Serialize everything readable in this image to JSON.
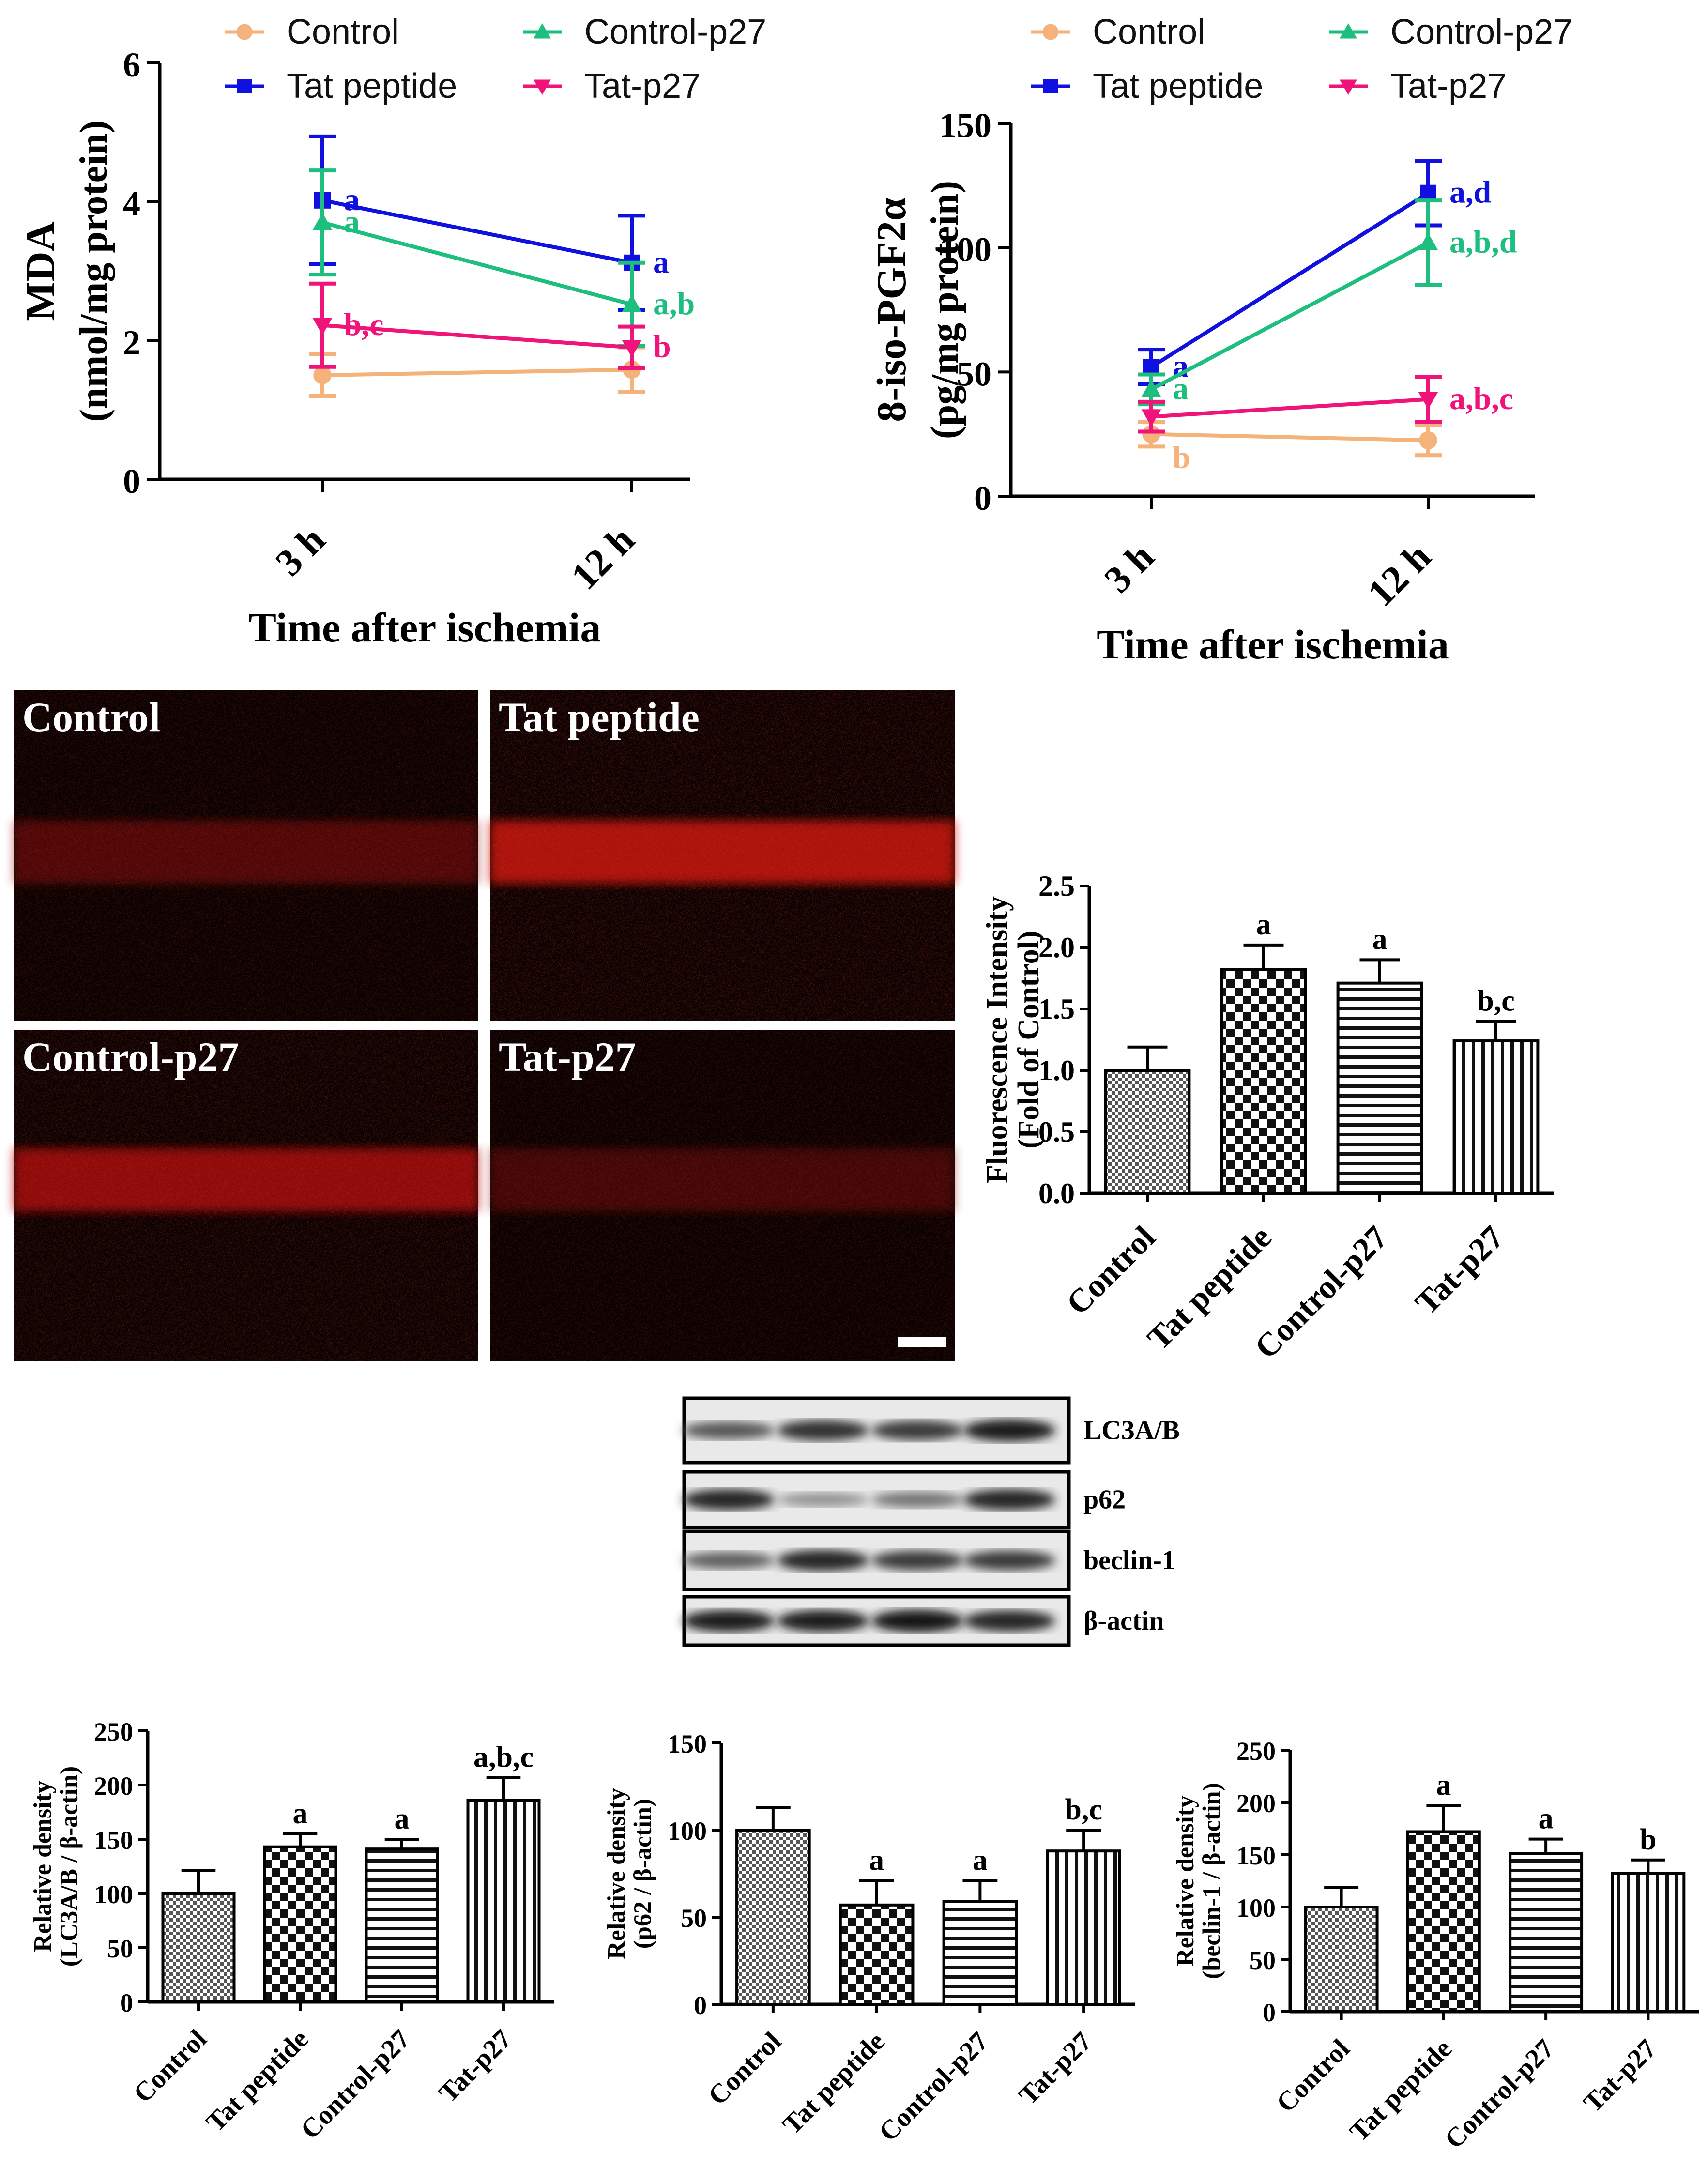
{
  "colors": {
    "Control": "#F5B27A",
    "Tat peptide": "#1010E0",
    "Control-p27": "#1DBE7E",
    "Tat-p27": "#F0137A"
  },
  "chart_data": [
    {
      "id": "mda",
      "type": "line",
      "ylabel": "MDA",
      "ylabel2": "(nmol/mg protein)",
      "xlabel": "Time after ischemia",
      "categories": [
        "3 h",
        "12 h"
      ],
      "ylim": [
        0,
        6
      ],
      "yticks": [
        0,
        2,
        4,
        6
      ],
      "series": [
        {
          "name": "Control",
          "values": [
            1.5,
            1.58
          ],
          "errors": [
            0.3,
            0.32
          ],
          "labels": [
            "",
            ""
          ]
        },
        {
          "name": "Tat peptide",
          "values": [
            4.02,
            3.12
          ],
          "errors": [
            0.92,
            0.68
          ],
          "labels": [
            "a",
            "a"
          ]
        },
        {
          "name": "Control-p27",
          "values": [
            3.7,
            2.52
          ],
          "errors": [
            0.75,
            0.6
          ],
          "labels": [
            "a",
            "a,b"
          ]
        },
        {
          "name": "Tat-p27",
          "values": [
            2.22,
            1.9
          ],
          "errors": [
            0.6,
            0.3
          ],
          "labels": [
            "b,c",
            "b"
          ]
        }
      ]
    },
    {
      "id": "isop",
      "type": "line",
      "ylabel": "8-iso-PGF2α",
      "ylabel2": "(pg/mg protein)",
      "xlabel": "Time after ischemia",
      "categories": [
        "3 h",
        "12 h"
      ],
      "ylim": [
        0,
        150
      ],
      "yticks": [
        0,
        50,
        100,
        150
      ],
      "series": [
        {
          "name": "Control",
          "values": [
            25,
            22.5
          ],
          "errors": [
            5,
            6
          ],
          "labels": [
            "b",
            ""
          ]
        },
        {
          "name": "Tat peptide",
          "values": [
            52,
            122
          ],
          "errors": [
            7,
            13
          ],
          "labels": [
            "a",
            "a,d"
          ]
        },
        {
          "name": "Control-p27",
          "values": [
            43,
            102
          ],
          "errors": [
            6,
            17
          ],
          "labels": [
            "a",
            "a,b,d"
          ]
        },
        {
          "name": "Tat-p27",
          "values": [
            32,
            39
          ],
          "errors": [
            6,
            9
          ],
          "labels": [
            "",
            "a,b,c"
          ]
        }
      ]
    },
    {
      "id": "fluor",
      "type": "bar",
      "ylabel": "Fluorescence Intensity",
      "ylabel2": "(Fold of Control)",
      "categories": [
        "Control",
        "Tat peptide",
        "Control-p27",
        "Tat-p27"
      ],
      "values": [
        1.0,
        1.82,
        1.71,
        1.24
      ],
      "errors": [
        0.19,
        0.2,
        0.19,
        0.16
      ],
      "labels": [
        "",
        "a",
        "a",
        "b,c"
      ],
      "patterns": [
        "fine",
        "check",
        "hstripe",
        "vstripe"
      ],
      "ylim": [
        0,
        2.5
      ],
      "yticks": [
        0.0,
        0.5,
        1.0,
        1.5,
        2.0,
        2.5
      ]
    },
    {
      "id": "lc3",
      "type": "bar",
      "ylabel": "Relative density",
      "ylabel2": "(LC3A/B / β-actin)",
      "categories": [
        "Control",
        "Tat peptide",
        "Control-p27",
        "Tat-p27"
      ],
      "values": [
        100,
        143,
        141,
        186
      ],
      "errors": [
        21,
        12,
        9,
        21
      ],
      "labels": [
        "",
        "a",
        "a",
        "a,b,c"
      ],
      "patterns": [
        "fine",
        "check",
        "hstripe",
        "vstripe"
      ],
      "ylim": [
        0,
        250
      ],
      "yticks": [
        0,
        50,
        100,
        150,
        200,
        250
      ]
    },
    {
      "id": "p62",
      "type": "bar",
      "ylabel": "Relative density",
      "ylabel2": "(p62 / β-actin)",
      "categories": [
        "Control",
        "Tat peptide",
        "Control-p27",
        "Tat-p27"
      ],
      "values": [
        100,
        57,
        59,
        88
      ],
      "errors": [
        13,
        14,
        12,
        12
      ],
      "labels": [
        "",
        "a",
        "a",
        "b,c"
      ],
      "patterns": [
        "fine",
        "check",
        "hstripe",
        "vstripe"
      ],
      "ylim": [
        0,
        150
      ],
      "yticks": [
        0,
        50,
        100,
        150
      ]
    },
    {
      "id": "beclin",
      "type": "bar",
      "ylabel": "Relative density",
      "ylabel2": "(beclin-1 / β-actin)",
      "categories": [
        "Control",
        "Tat peptide",
        "Control-p27",
        "Tat-p27"
      ],
      "values": [
        100,
        172,
        151,
        132
      ],
      "errors": [
        19,
        25,
        14,
        13
      ],
      "labels": [
        "",
        "a",
        "a",
        "b"
      ],
      "patterns": [
        "fine",
        "check",
        "hstripe",
        "vstripe"
      ],
      "ylim": [
        0,
        250
      ],
      "yticks": [
        0,
        50,
        100,
        150,
        200,
        250
      ]
    }
  ],
  "legend": [
    "Control",
    "Tat peptide",
    "Control-p27",
    "Tat-p27"
  ],
  "micrographs": {
    "panels": [
      "Control",
      "Tat peptide",
      "Control-p27",
      "Tat-p27"
    ],
    "intensity": [
      0.45,
      1.0,
      0.85,
      0.35
    ]
  },
  "blot": {
    "rows": [
      "LC3A/B",
      "p62",
      "beclin-1",
      "β-actin"
    ],
    "band_strength": [
      [
        0.6,
        0.8,
        0.75,
        0.9
      ],
      [
        0.85,
        0.3,
        0.45,
        0.85
      ],
      [
        0.55,
        0.85,
        0.75,
        0.75
      ],
      [
        0.9,
        0.9,
        0.95,
        0.85
      ]
    ]
  }
}
